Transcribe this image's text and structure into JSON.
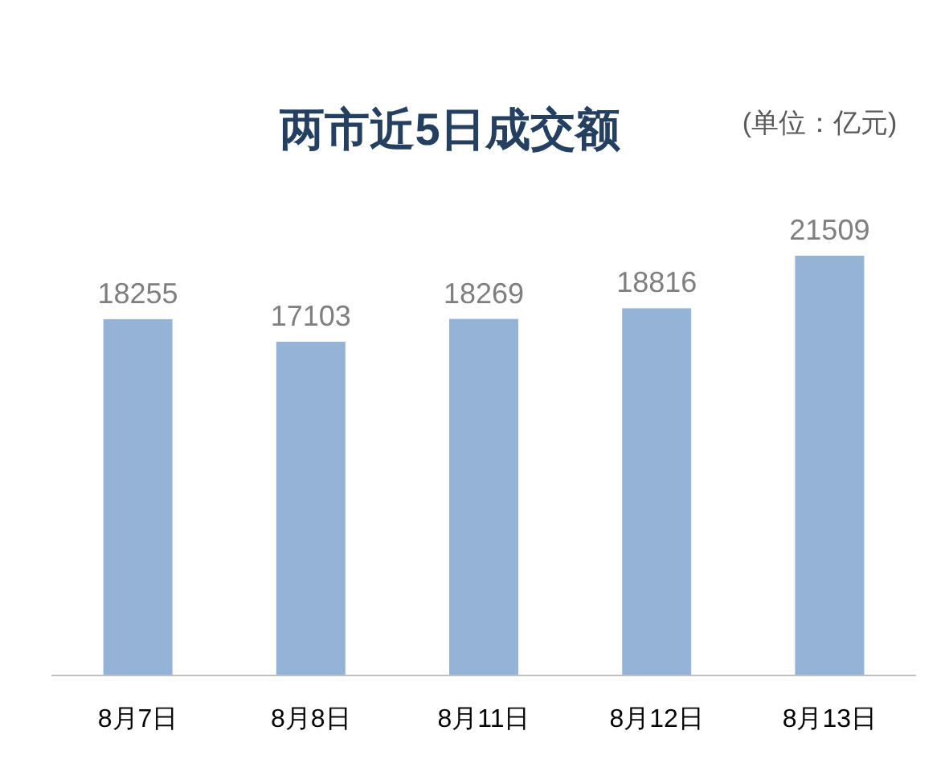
{
  "chart_data": {
    "type": "bar",
    "title": "两市近5日成交额",
    "subtitle": "(单位：亿元)",
    "categories": [
      "8月7日",
      "8月8日",
      "8月11日",
      "8月12日",
      "8月13日"
    ],
    "values": [
      18255,
      17103,
      18269,
      18816,
      21509
    ],
    "color": "#95b3d7",
    "data_labels": true
  }
}
